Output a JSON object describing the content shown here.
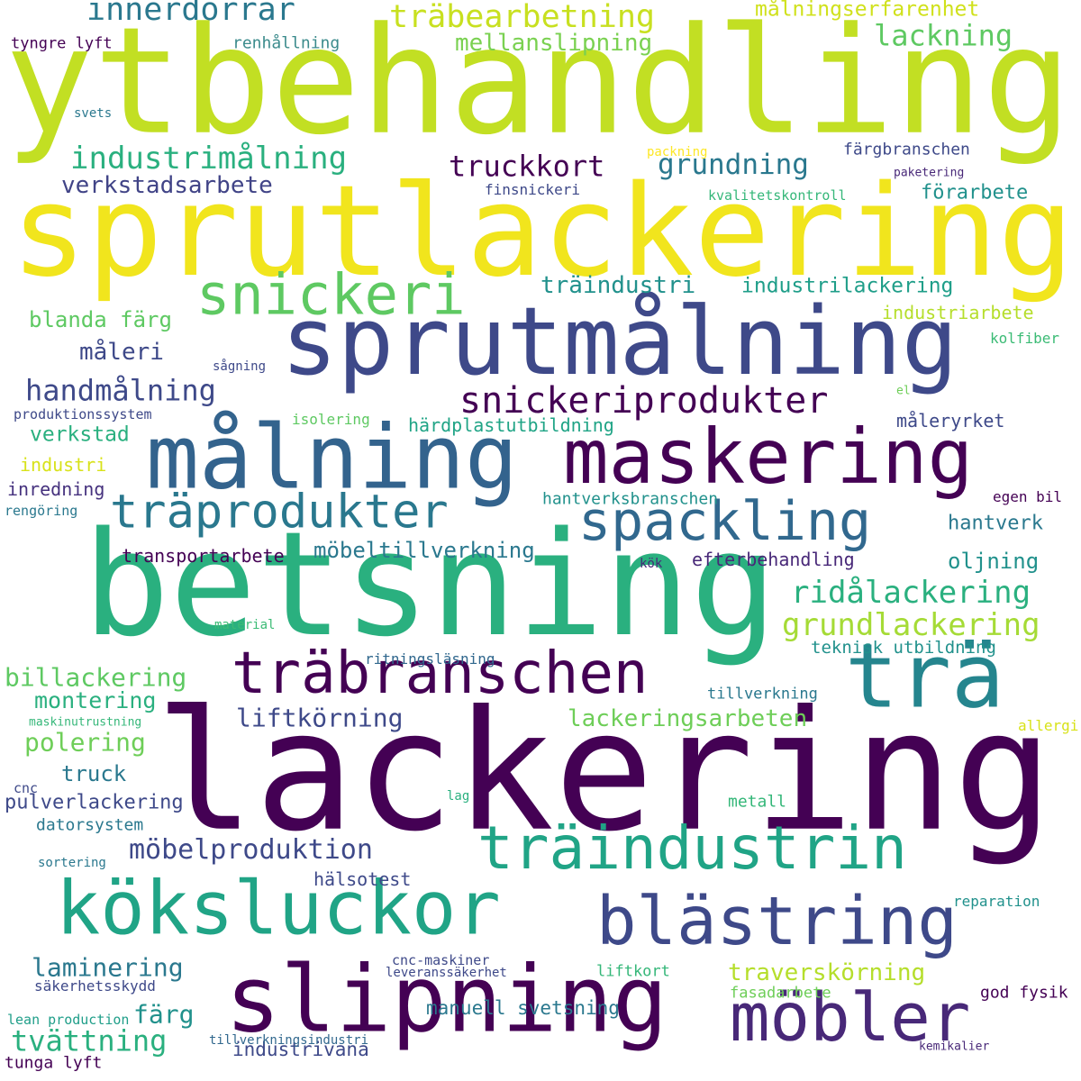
{
  "words": [
    {
      "text": "ytbehandling",
      "weight": 1.0,
      "color": "#c2df23"
    },
    {
      "text": "sprutlackering",
      "weight": 0.96,
      "color": "#f1e51d"
    },
    {
      "text": "lackering",
      "weight": 0.98,
      "color": "#440154"
    },
    {
      "text": "betsning",
      "weight": 0.94,
      "color": "#2ab07f"
    },
    {
      "text": "sprutmålning",
      "weight": 0.76,
      "color": "#3e4989"
    },
    {
      "text": "målning",
      "weight": 0.72,
      "color": "#33638d"
    },
    {
      "text": "maskering",
      "weight": 0.66,
      "color": "#440154"
    },
    {
      "text": "köksluckor",
      "weight": 0.64,
      "color": "#20a486"
    },
    {
      "text": "slipning",
      "weight": 0.74,
      "color": "#440154"
    },
    {
      "text": "möbler",
      "weight": 0.6,
      "color": "#482878"
    },
    {
      "text": "blästring",
      "weight": 0.6,
      "color": "#3e4989"
    },
    {
      "text": "trä",
      "weight": 0.6,
      "color": "#25858e"
    },
    {
      "text": "träindustrin",
      "weight": 0.5,
      "color": "#20a486"
    },
    {
      "text": "träbranschen",
      "weight": 0.5,
      "color": "#440154"
    },
    {
      "text": "träprodukter",
      "weight": 0.42,
      "color": "#2a788e"
    },
    {
      "text": "spackling",
      "weight": 0.46,
      "color": "#31688e"
    },
    {
      "text": "snickeri",
      "weight": 0.44,
      "color": "#5ec962"
    },
    {
      "text": "snickeriprodukter",
      "weight": 0.3,
      "color": "#440154"
    },
    {
      "text": "innerdörrar",
      "weight": 0.25,
      "color": "#2a788e"
    },
    {
      "text": "träbearbetning",
      "weight": 0.25,
      "color": "#c8e020"
    },
    {
      "text": "lackning",
      "weight": 0.24,
      "color": "#5ec962"
    },
    {
      "text": "mellanslipning",
      "weight": 0.2,
      "color": "#7ad151"
    },
    {
      "text": "målningserfarenhet",
      "weight": 0.18,
      "color": "#d0e11c"
    },
    {
      "text": "tyngre lyft",
      "weight": 0.13,
      "color": "#440154"
    },
    {
      "text": "renhållning",
      "weight": 0.14,
      "color": "#3b8b8c"
    },
    {
      "text": "svets",
      "weight": 0.11,
      "color": "#2a788e"
    },
    {
      "text": "industrimålning",
      "weight": 0.25,
      "color": "#2ab07f"
    },
    {
      "text": "verkstadsarbete",
      "weight": 0.2,
      "color": "#414487"
    },
    {
      "text": "truckkort",
      "weight": 0.24,
      "color": "#440154"
    },
    {
      "text": "grundning",
      "weight": 0.23,
      "color": "#2a788e"
    },
    {
      "text": "packning",
      "weight": 0.11,
      "color": "#fde725"
    },
    {
      "text": "färgbranschen",
      "weight": 0.14,
      "color": "#3e4989"
    },
    {
      "text": "paketering",
      "weight": 0.1,
      "color": "#482878"
    },
    {
      "text": "finsnickeri",
      "weight": 0.13,
      "color": "#3e4989"
    },
    {
      "text": "kvalitetskontroll",
      "weight": 0.12,
      "color": "#35b779"
    },
    {
      "text": "förarbete",
      "weight": 0.16,
      "color": "#21918c"
    },
    {
      "text": "träindustri",
      "weight": 0.2,
      "color": "#21918c"
    },
    {
      "text": "industrilackering",
      "weight": 0.18,
      "color": "#1f9e89"
    },
    {
      "text": "blanda färg",
      "weight": 0.18,
      "color": "#5ec962"
    },
    {
      "text": "industriarbete",
      "weight": 0.15,
      "color": "#b5de2b"
    },
    {
      "text": "kolfiber",
      "weight": 0.13,
      "color": "#3bbb75"
    },
    {
      "text": "måleri",
      "weight": 0.2,
      "color": "#3e4989"
    },
    {
      "text": "sågning",
      "weight": 0.11,
      "color": "#3e4989"
    },
    {
      "text": "handmålning",
      "weight": 0.23,
      "color": "#3e4989"
    },
    {
      "text": "el",
      "weight": 0.1,
      "color": "#6ece58"
    },
    {
      "text": "produktionssystem",
      "weight": 0.12,
      "color": "#3e4989"
    },
    {
      "text": "isolering",
      "weight": 0.13,
      "color": "#5ec962"
    },
    {
      "text": "härdplastutbildning",
      "weight": 0.15,
      "color": "#20a486"
    },
    {
      "text": "måleryrket",
      "weight": 0.15,
      "color": "#3e4989"
    },
    {
      "text": "verkstad",
      "weight": 0.18,
      "color": "#2ab07f"
    },
    {
      "text": "industri",
      "weight": 0.15,
      "color": "#d8e219"
    },
    {
      "text": "inredning",
      "weight": 0.15,
      "color": "#46327e"
    },
    {
      "text": "rengöring",
      "weight": 0.11,
      "color": "#2a788e"
    },
    {
      "text": "hantverksbranschen",
      "weight": 0.14,
      "color": "#21918c"
    },
    {
      "text": "egen bil",
      "weight": 0.12,
      "color": "#440154"
    },
    {
      "text": "hantverk",
      "weight": 0.16,
      "color": "#2a788e"
    },
    {
      "text": "möbeltillverkning",
      "weight": 0.18,
      "color": "#2a788e"
    },
    {
      "text": "transportarbete",
      "weight": 0.15,
      "color": "#440154"
    },
    {
      "text": "kök",
      "weight": 0.1,
      "color": "#482878"
    },
    {
      "text": "efterbehandling",
      "weight": 0.15,
      "color": "#482878"
    },
    {
      "text": "oljning",
      "weight": 0.18,
      "color": "#21918c"
    },
    {
      "text": "ridålackering",
      "weight": 0.25,
      "color": "#2ab07f"
    },
    {
      "text": "grundlackering",
      "weight": 0.25,
      "color": "#a5db36"
    },
    {
      "text": "material",
      "weight": 0.1,
      "color": "#3bbb75"
    },
    {
      "text": "teknisk utbildning",
      "weight": 0.14,
      "color": "#21918c"
    },
    {
      "text": "ritningsläsning",
      "weight": 0.12,
      "color": "#31688e"
    },
    {
      "text": "billackering",
      "weight": 0.2,
      "color": "#5ec962"
    },
    {
      "text": "montering",
      "weight": 0.18,
      "color": "#2ab07f"
    },
    {
      "text": "tillverkning",
      "weight": 0.12,
      "color": "#2a788e"
    },
    {
      "text": "maskinutrustning",
      "weight": 0.1,
      "color": "#35b779"
    },
    {
      "text": "allergi",
      "weight": 0.12,
      "color": "#d8e219"
    },
    {
      "text": "liftkörning",
      "weight": 0.22,
      "color": "#3e4989"
    },
    {
      "text": "lackeringsarbeten",
      "weight": 0.2,
      "color": "#6ece58"
    },
    {
      "text": "polering",
      "weight": 0.2,
      "color": "#6ece58"
    },
    {
      "text": "truck",
      "weight": 0.16,
      "color": "#2a788e"
    },
    {
      "text": "cnc",
      "weight": 0.12,
      "color": "#3e4989"
    },
    {
      "text": "pulverlackering",
      "weight": 0.16,
      "color": "#3e4989"
    },
    {
      "text": "lag",
      "weight": 0.1,
      "color": "#2ab07f"
    },
    {
      "text": "metall",
      "weight": 0.14,
      "color": "#35b779"
    },
    {
      "text": "datorsystem",
      "weight": 0.14,
      "color": "#2a788e"
    },
    {
      "text": "möbelproduktion",
      "weight": 0.22,
      "color": "#3e4989"
    },
    {
      "text": "sortering",
      "weight": 0.11,
      "color": "#2a788e"
    },
    {
      "text": "hälsotest",
      "weight": 0.16,
      "color": "#3e4989"
    },
    {
      "text": "reparation",
      "weight": 0.13,
      "color": "#21918c"
    },
    {
      "text": "laminering",
      "weight": 0.2,
      "color": "#2a788e"
    },
    {
      "text": "cnc-maskiner",
      "weight": 0.12,
      "color": "#3e4989"
    },
    {
      "text": "leveranssäkerhet",
      "weight": 0.12,
      "color": "#3e4989"
    },
    {
      "text": "liftkort",
      "weight": 0.13,
      "color": "#35b779"
    },
    {
      "text": "traverskörning",
      "weight": 0.2,
      "color": "#b5de2b"
    },
    {
      "text": "säkerhetsskydd",
      "weight": 0.13,
      "color": "#3e4989"
    },
    {
      "text": "fasadarbete",
      "weight": 0.13,
      "color": "#6ece58"
    },
    {
      "text": "god fysik",
      "weight": 0.13,
      "color": "#440154"
    },
    {
      "text": "färg",
      "weight": 0.2,
      "color": "#21918c"
    },
    {
      "text": "lean production",
      "weight": 0.11,
      "color": "#1f9e89"
    },
    {
      "text": "tvättning",
      "weight": 0.24,
      "color": "#2ab07f"
    },
    {
      "text": "industrivana",
      "weight": 0.16,
      "color": "#3e4989"
    },
    {
      "text": "manuell svetsning",
      "weight": 0.16,
      "color": "#2a788e"
    },
    {
      "text": "tunga lyft",
      "weight": 0.12,
      "color": "#440154"
    },
    {
      "text": "tillverkningsindustri",
      "weight": 0.11,
      "color": "#31688e"
    },
    {
      "text": "kemikalier",
      "weight": 0.1,
      "color": "#482878"
    }
  ]
}
